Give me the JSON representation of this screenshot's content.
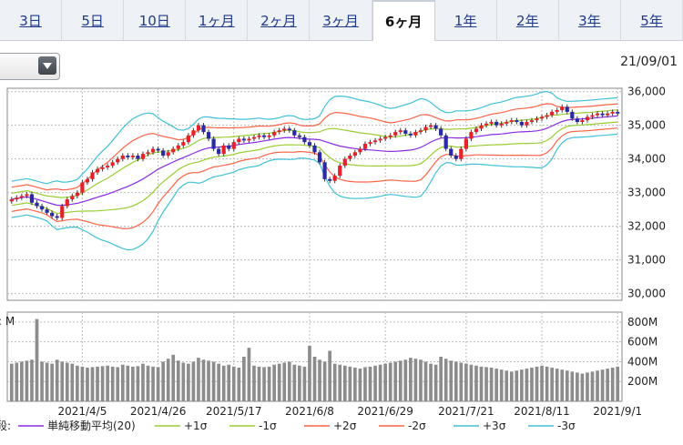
{
  "tabs": [
    {
      "label": "3日",
      "active": false
    },
    {
      "label": "5日",
      "active": false
    },
    {
      "label": "10日",
      "active": false
    },
    {
      "label": "1ヶ月",
      "active": false
    },
    {
      "label": "2ヶ月",
      "active": false
    },
    {
      "label": "3ヶ月",
      "active": false
    },
    {
      "label": "6ヶ月",
      "active": true
    },
    {
      "label": "1年",
      "active": false
    },
    {
      "label": "2年",
      "active": false
    },
    {
      "label": "3年",
      "active": false
    },
    {
      "label": "5年",
      "active": false
    }
  ],
  "header": {
    "date": "21/09/01"
  },
  "chart_data": [
    {
      "type": "candlestick",
      "ylim": [
        29800,
        36100
      ],
      "yticks": [
        30000,
        31000,
        32000,
        33000,
        34000,
        35000,
        36000
      ],
      "ytick_labels": [
        "30,000",
        "31,000",
        "32,000",
        "33,000",
        "34,000",
        "35,000",
        "36,000"
      ],
      "xtick_labels": [
        "2021/4/5",
        "2021/4/26",
        "2021/5/17",
        "2021/6/8",
        "2021/6/29",
        "2021/7/21",
        "2021/8/11",
        "2021/9/1"
      ],
      "xtick_positions": [
        14,
        29,
        44,
        59,
        74,
        90,
        105,
        120
      ],
      "grid": true,
      "legend_position": "bottom",
      "legend_prefix": "段:",
      "legend": [
        {
          "name": "単純移動平均(20)",
          "color": "#8a2be2"
        },
        {
          "name": "+1σ",
          "color": "#9acd32"
        },
        {
          "name": "-1σ",
          "color": "#9acd32"
        },
        {
          "name": "+2σ",
          "color": "#ff6347"
        },
        {
          "name": "-2σ",
          "color": "#ff6347"
        },
        {
          "name": "+3σ",
          "color": "#40c0d8"
        },
        {
          "name": "-3σ",
          "color": "#40c0d8"
        }
      ],
      "colors": {
        "up": "#e8202a",
        "down": "#2a2aa8",
        "sma": "#8a2be2",
        "sigma1": "#9acd32",
        "sigma2": "#ff6347",
        "sigma3": "#40c0d8"
      },
      "closes": [
        32800,
        32850,
        32900,
        32950,
        32700,
        32600,
        32500,
        32400,
        32300,
        32250,
        32600,
        32800,
        32900,
        33000,
        33300,
        33400,
        33600,
        33700,
        33750,
        33800,
        33900,
        34000,
        34100,
        34050,
        34100,
        34000,
        34150,
        34200,
        34300,
        34250,
        34100,
        34200,
        34300,
        34400,
        34500,
        34700,
        34850,
        35000,
        34800,
        34600,
        34300,
        34150,
        34400,
        34300,
        34500,
        34600,
        34550,
        34600,
        34650,
        34700,
        34650,
        34700,
        34800,
        34850,
        34900,
        34850,
        34700,
        34650,
        34500,
        34400,
        34200,
        33900,
        33400,
        33350,
        33500,
        33800,
        34000,
        34100,
        34200,
        34300,
        34450,
        34500,
        34550,
        34600,
        34650,
        34700,
        34800,
        34850,
        34750,
        34700,
        34800,
        34850,
        34950,
        35000,
        34900,
        34700,
        34300,
        34100,
        34000,
        34300,
        34600,
        34800,
        34900,
        35000,
        35050,
        35100,
        35000,
        35050,
        35100,
        35150,
        35100,
        35000,
        35100,
        35150,
        35200,
        35250,
        35300,
        35400,
        35450,
        35550,
        35400,
        35200,
        35100,
        35150,
        35250,
        35300,
        35350,
        35300,
        35350,
        35400,
        35350
      ],
      "volume_ylim": [
        0,
        900
      ],
      "volume_yticks": [
        200,
        400,
        600,
        800
      ],
      "volume_ytick_labels": [
        "200M",
        "400M",
        "600M",
        "800M"
      ],
      "volume_unit_label": ": M",
      "volumes": [
        380,
        390,
        400,
        410,
        420,
        830,
        400,
        390,
        380,
        420,
        400,
        390,
        380,
        360,
        350,
        340,
        345,
        350,
        355,
        360,
        350,
        345,
        370,
        360,
        350,
        355,
        380,
        360,
        350,
        345,
        400,
        430,
        470,
        410,
        390,
        380,
        400,
        440,
        420,
        410,
        400,
        380,
        360,
        370,
        350,
        340,
        450,
        540,
        360,
        350,
        345,
        350,
        370,
        380,
        390,
        400,
        370,
        360,
        350,
        560,
        450,
        420,
        400,
        510,
        380,
        370,
        360,
        350,
        340,
        330,
        345,
        350,
        360,
        370,
        380,
        390,
        400,
        410,
        420,
        440,
        430,
        420,
        400,
        380,
        370,
        450,
        430,
        410,
        400,
        390,
        380,
        370,
        360,
        350,
        345,
        340,
        330,
        320,
        310,
        300,
        310,
        320,
        330,
        340,
        350,
        360,
        350,
        340,
        330,
        320,
        310,
        300,
        290,
        280,
        290,
        300,
        310,
        320,
        330,
        340,
        350
      ]
    }
  ]
}
